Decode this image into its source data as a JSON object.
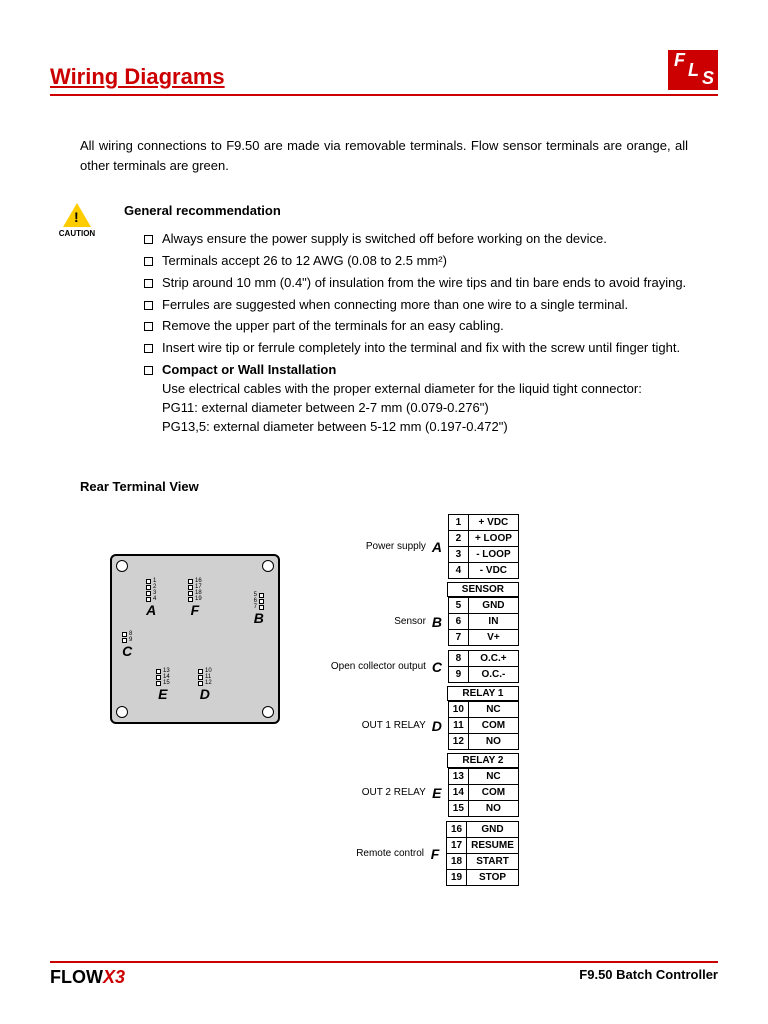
{
  "header": {
    "title": "Wiring Diagrams",
    "logo_bg": "#cc0000",
    "logo_text_f": "F",
    "logo_text_l": "L",
    "logo_text_s": "S"
  },
  "intro": "All wiring connections to F9.50 are made via removable terminals. Flow sensor terminals are orange, all other terminals are green.",
  "caution_label": "CAUTION",
  "rec_heading": "General recommendation",
  "rec_items": [
    "Always ensure the power supply is switched off before working on the device.",
    "Terminals accept 26 to 12 AWG (0.08 to 2.5 mm²)",
    "Strip around 10 mm (0.4\") of insulation from the wire tips and tin bare ends to avoid fraying.",
    "Ferrules are suggested when connecting more than one wire to a single terminal.",
    "Remove the upper part of the terminals for an easy cabling.",
    "Insert wire tip or ferrule completely into the terminal and fix with the screw until finger tight."
  ],
  "compact_head": "Compact or Wall Installation",
  "compact_lines": [
    "Use electrical cables with the proper external diameter for the liquid tight connector:",
    "PG11: external diameter between 2-7 mm (0.079-0.276\")",
    "PG13,5: external diameter between 5-12 mm (0.197-0.472\")"
  ],
  "rtv_heading": "Rear Terminal View",
  "device_groups": {
    "A": {
      "letter": "A",
      "nums": [
        "1",
        "2",
        "3",
        "4"
      ]
    },
    "F": {
      "letter": "F",
      "nums": [
        "16",
        "17",
        "18",
        "19"
      ]
    },
    "B": {
      "letter": "B",
      "nums": [
        "5",
        "6",
        "7"
      ]
    },
    "C": {
      "letter": "C",
      "nums": [
        "8",
        "9"
      ]
    },
    "E": {
      "letter": "E",
      "nums": [
        "13",
        "14",
        "15"
      ]
    },
    "D": {
      "letter": "D",
      "nums": [
        "10",
        "11",
        "12"
      ]
    }
  },
  "terminals": [
    {
      "label": "Power supply",
      "letter": "A",
      "header": null,
      "rows": [
        [
          "1",
          "+ VDC"
        ],
        [
          "2",
          "+ LOOP"
        ],
        [
          "3",
          "- LOOP"
        ],
        [
          "4",
          "- VDC"
        ]
      ]
    },
    {
      "label": "Sensor",
      "letter": "B",
      "header": "SENSOR",
      "rows": [
        [
          "5",
          "GND"
        ],
        [
          "6",
          "IN"
        ],
        [
          "7",
          "V+"
        ]
      ]
    },
    {
      "label": "Open collector output",
      "letter": "C",
      "header": null,
      "rows": [
        [
          "8",
          "O.C.+"
        ],
        [
          "9",
          "O.C.-"
        ]
      ]
    },
    {
      "label": "OUT 1 RELAY",
      "letter": "D",
      "header": "RELAY 1",
      "rows": [
        [
          "10",
          "NC"
        ],
        [
          "11",
          "COM"
        ],
        [
          "12",
          "NO"
        ]
      ]
    },
    {
      "label": "OUT 2 RELAY",
      "letter": "E",
      "header": "RELAY 2",
      "rows": [
        [
          "13",
          "NC"
        ],
        [
          "14",
          "COM"
        ],
        [
          "15",
          "NO"
        ]
      ]
    },
    {
      "label": "Remote control",
      "letter": "F",
      "header": null,
      "rows": [
        [
          "16",
          "GND"
        ],
        [
          "17",
          "RESUME"
        ],
        [
          "18",
          "START"
        ],
        [
          "19",
          "STOP"
        ]
      ]
    }
  ],
  "footer": {
    "left_flow": "FLOW",
    "left_x3": "X3",
    "right": "F9.50 Batch Controller"
  }
}
